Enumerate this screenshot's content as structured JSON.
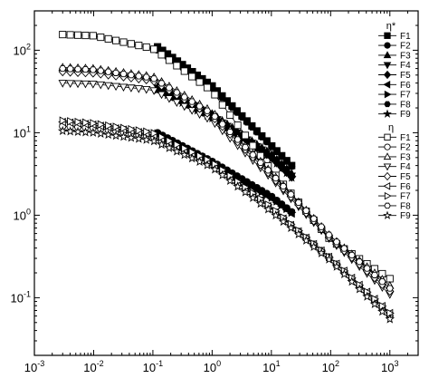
{
  "chart_data": {
    "type": "scatter",
    "title": "",
    "xlabel": "",
    "ylabel": "",
    "xscale": "log",
    "yscale": "log",
    "xlim": [
      0.001,
      3000
    ],
    "ylim": [
      0.02,
      300
    ],
    "x_tick_labels": [
      {
        "mant": "10",
        "exp": "-3",
        "value": 0.001
      },
      {
        "mant": "10",
        "exp": "-2",
        "value": 0.01
      },
      {
        "mant": "10",
        "exp": "-1",
        "value": 0.1
      },
      {
        "mant": "10",
        "exp": "0",
        "value": 1
      },
      {
        "mant": "10",
        "exp": "1",
        "value": 10
      },
      {
        "mant": "10",
        "exp": "2",
        "value": 100
      },
      {
        "mant": "10",
        "exp": "3",
        "value": 1000
      }
    ],
    "y_tick_labels": [
      {
        "mant": "10",
        "exp": "-1",
        "value": 0.1
      },
      {
        "mant": "10",
        "exp": "0",
        "value": 1
      },
      {
        "mant": "10",
        "exp": "1",
        "value": 10
      },
      {
        "mant": "10",
        "exp": "2",
        "value": 100
      }
    ],
    "legend_position": "right",
    "legend_groups": [
      {
        "title": "η*",
        "entries": [
          "F1",
          "F2",
          "F3",
          "F4",
          "F5",
          "F6",
          "F7",
          "F8",
          "F9"
        ],
        "filled": true
      },
      {
        "title": "η",
        "entries": [
          "F1",
          "F2",
          "F3",
          "F4",
          "F5",
          "F6",
          "F7",
          "F8",
          "F9"
        ],
        "filled": false
      }
    ],
    "marker_shapes": [
      "square",
      "circle",
      "triangle-up",
      "triangle-down",
      "diamond",
      "triangle-left",
      "triangle-right",
      "hexagon",
      "star"
    ],
    "series": [
      {
        "name": "η* F1",
        "marker": "square",
        "filled": true,
        "x": [
          0.12,
          1,
          10,
          22
        ],
        "y": [
          110,
          37,
          7,
          4
        ]
      },
      {
        "name": "η* F2",
        "marker": "circle",
        "filled": true,
        "x": [
          0.12,
          1,
          10,
          22
        ],
        "y": [
          10,
          4.5,
          1.7,
          1.1
        ]
      },
      {
        "name": "η* F3",
        "marker": "triangle-up",
        "filled": true,
        "x": [
          0.12,
          1,
          10,
          22
        ],
        "y": [
          36,
          17,
          5.5,
          3.2
        ]
      },
      {
        "name": "η* F4",
        "marker": "triangle-down",
        "filled": true,
        "x": [
          0.12,
          1,
          10,
          22
        ],
        "y": [
          35,
          16,
          5.2,
          3.0
        ]
      },
      {
        "name": "η* F5",
        "marker": "diamond",
        "filled": true,
        "x": [
          0.12,
          1,
          10,
          22
        ],
        "y": [
          34,
          15.5,
          5.0,
          2.9
        ]
      },
      {
        "name": "η* F6",
        "marker": "triangle-left",
        "filled": true,
        "x": [
          0.12,
          1,
          10,
          22
        ],
        "y": [
          9.5,
          4.3,
          1.6,
          1.05
        ]
      },
      {
        "name": "η* F7",
        "marker": "triangle-right",
        "filled": true,
        "x": [
          0.12,
          1,
          10,
          22
        ],
        "y": [
          9.8,
          4.4,
          1.65,
          1.08
        ]
      },
      {
        "name": "η* F8",
        "marker": "hexagon",
        "filled": true,
        "x": [
          0.12,
          1,
          10,
          22
        ],
        "y": [
          100,
          35,
          6.8,
          3.9
        ]
      },
      {
        "name": "η* F9",
        "marker": "star",
        "filled": true,
        "x": [
          0.12,
          1,
          10,
          22
        ],
        "y": [
          33,
          15,
          4.9,
          2.85
        ]
      },
      {
        "name": "η F1",
        "marker": "square",
        "filled": false,
        "x": [
          0.003,
          0.01,
          0.1,
          1,
          10,
          100,
          1000
        ],
        "y": [
          155,
          150,
          105,
          32,
          3.5,
          0.5,
          0.17
        ]
      },
      {
        "name": "η F2",
        "marker": "circle",
        "filled": false,
        "x": [
          0.003,
          0.01,
          0.1,
          1,
          10,
          100,
          1000
        ],
        "y": [
          12,
          11.5,
          9,
          4.2,
          1.2,
          0.3,
          0.06
        ]
      },
      {
        "name": "η F3",
        "marker": "triangle-up",
        "filled": false,
        "x": [
          0.003,
          0.01,
          0.1,
          1,
          10,
          100,
          1000
        ],
        "y": [
          62,
          60,
          48,
          18,
          3.3,
          0.55,
          0.14
        ]
      },
      {
        "name": "η F4",
        "marker": "triangle-down",
        "filled": false,
        "x": [
          0.003,
          0.01,
          0.1,
          1,
          10,
          100,
          1000
        ],
        "y": [
          40,
          39,
          33,
          14,
          2.8,
          0.5,
          0.11
        ]
      },
      {
        "name": "η F5",
        "marker": "diamond",
        "filled": false,
        "x": [
          0.003,
          0.01,
          0.1,
          1,
          10,
          100,
          1000
        ],
        "y": [
          55,
          53,
          43,
          16,
          3.0,
          0.52,
          0.12
        ]
      },
      {
        "name": "η F6",
        "marker": "triangle-left",
        "filled": false,
        "x": [
          0.003,
          0.01,
          0.1,
          1,
          10,
          100,
          1000
        ],
        "y": [
          13.5,
          12.5,
          9.5,
          4.3,
          1.2,
          0.3,
          0.065
        ]
      },
      {
        "name": "η F7",
        "marker": "triangle-right",
        "filled": false,
        "x": [
          0.003,
          0.01,
          0.1,
          1,
          10,
          100,
          1000
        ],
        "y": [
          14,
          13,
          10,
          4.4,
          1.25,
          0.3,
          0.065
        ]
      },
      {
        "name": "η F8",
        "marker": "hexagon",
        "filled": false,
        "x": [
          0.003,
          0.01,
          0.1,
          1,
          10,
          100,
          1000
        ],
        "y": [
          60,
          58,
          46,
          17,
          3.2,
          0.55,
          0.13
        ]
      },
      {
        "name": "η F9",
        "marker": "star",
        "filled": false,
        "x": [
          0.003,
          0.01,
          0.1,
          1,
          10,
          100,
          1000
        ],
        "y": [
          10.5,
          10,
          8,
          3.8,
          1.1,
          0.28,
          0.055
        ]
      }
    ]
  }
}
